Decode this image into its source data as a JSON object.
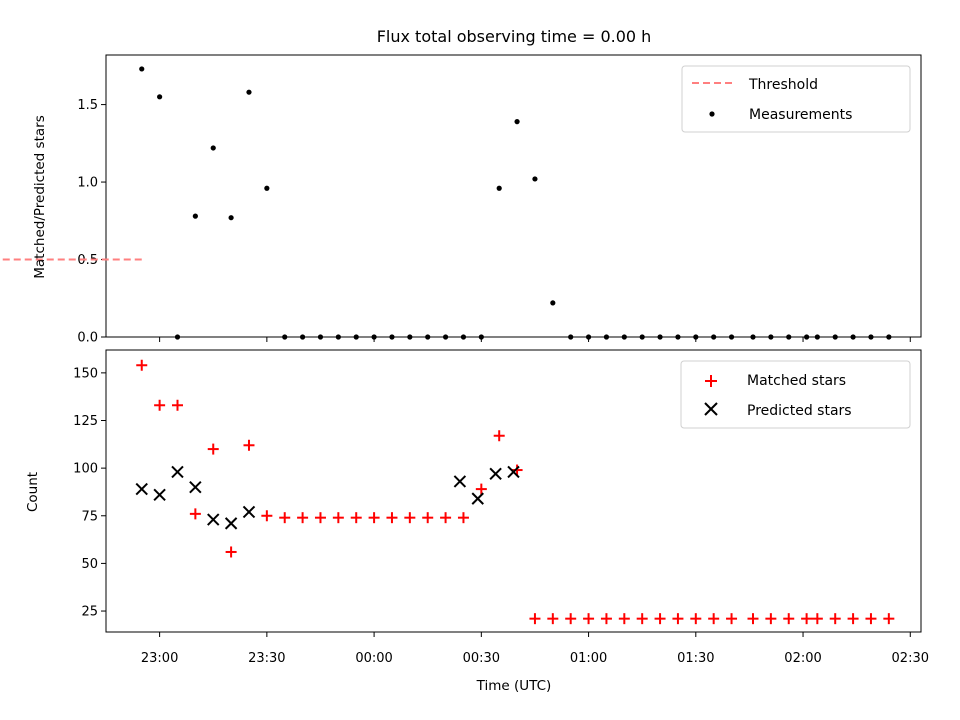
{
  "title": "Flux total observing time = 0.00 h",
  "xlabel": "Time (UTC)",
  "x_ticks": [
    "23:00",
    "23:30",
    "00:00",
    "00:30",
    "01:00",
    "01:30",
    "02:00",
    "02:30"
  ],
  "chart_data": [
    {
      "type": "scatter",
      "ylabel": "Matched/Predicted stars",
      "xlim": [
        "22:45",
        "02:33"
      ],
      "ylim": [
        0,
        1.82
      ],
      "yticks": [
        "0.0",
        "0.5",
        "1.0",
        "1.5"
      ],
      "legend_position": "top-right",
      "series": [
        {
          "name": "Threshold",
          "style": "dashed-line",
          "color": "#ff7f7f",
          "x": [
            "22:55",
            "02:24"
          ],
          "y": [
            0.5,
            0.5
          ]
        },
        {
          "name": "Measurements",
          "style": "dot",
          "color": "#000000",
          "x": [
            "22:55",
            "22:60",
            "23:05",
            "23:10",
            "23:15",
            "23:20",
            "23:25",
            "23:30",
            "23:35",
            "23:40",
            "23:45",
            "23:50",
            "23:55",
            "24:00",
            "24:05",
            "24:10",
            "24:15",
            "24:20",
            "24:25",
            "24:30",
            "24:35",
            "24:40",
            "24:45",
            "24:50",
            "24:55",
            "25:00",
            "25:05",
            "25:10",
            "25:15",
            "25:20",
            "25:25",
            "25:30",
            "25:35",
            "25:40",
            "25:46",
            "25:51",
            "25:56",
            "26:01",
            "26:04",
            "26:09",
            "26:14",
            "26:19",
            "26:24"
          ],
          "y": [
            1.73,
            1.55,
            0,
            0.78,
            1.22,
            0.77,
            1.58,
            0.96,
            0,
            0,
            0,
            0,
            0,
            0,
            0,
            0,
            0,
            0,
            0,
            0,
            0.96,
            1.39,
            1.02,
            0.22,
            0,
            0,
            0,
            0,
            0,
            0,
            0,
            0,
            0,
            0,
            0,
            0,
            0,
            0,
            0,
            0,
            0,
            0,
            0
          ]
        }
      ]
    },
    {
      "type": "scatter",
      "ylabel": "Count",
      "xlim": [
        "22:45",
        "02:33"
      ],
      "ylim": [
        14,
        162
      ],
      "yticks": [
        "25",
        "50",
        "75",
        "100",
        "125",
        "150"
      ],
      "legend_position": "top-right",
      "series": [
        {
          "name": "Matched stars",
          "style": "plus",
          "color": "#ff0000",
          "x": [
            "22:55",
            "22:60",
            "23:05",
            "23:10",
            "23:15",
            "23:20",
            "23:25",
            "23:30",
            "23:35",
            "23:40",
            "23:45",
            "23:50",
            "23:55",
            "24:00",
            "24:05",
            "24:10",
            "24:15",
            "24:20",
            "24:25",
            "24:30",
            "24:35",
            "24:40",
            "24:45",
            "24:50",
            "24:55",
            "25:00",
            "25:05",
            "25:10",
            "25:15",
            "25:20",
            "25:25",
            "25:30",
            "25:35",
            "25:40",
            "25:46",
            "25:51",
            "25:56",
            "26:01",
            "26:04",
            "26:09",
            "26:14",
            "26:19",
            "26:24"
          ],
          "y": [
            154,
            133,
            133,
            76,
            110,
            56,
            112,
            75,
            74,
            74,
            74,
            74,
            74,
            74,
            74,
            74,
            74,
            74,
            74,
            89,
            117,
            99,
            21,
            21,
            21,
            21,
            21,
            21,
            21,
            21,
            21,
            21,
            21,
            21,
            21,
            21,
            21,
            21,
            21,
            21,
            21,
            21,
            21
          ]
        },
        {
          "name": "Predicted stars",
          "style": "x",
          "color": "#000000",
          "x": [
            "22:55",
            "22:60",
            "23:05",
            "23:10",
            "23:15",
            "23:20",
            "23:25",
            "24:24",
            "24:29",
            "24:34",
            "24:39"
          ],
          "y": [
            89,
            86,
            98,
            90,
            73,
            71,
            77,
            93,
            84,
            97,
            98
          ]
        }
      ]
    }
  ]
}
